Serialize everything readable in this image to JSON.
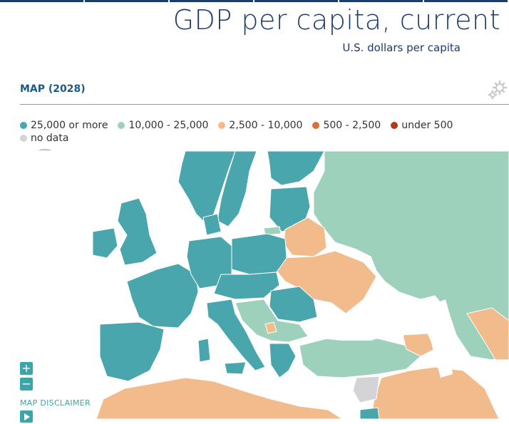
{
  "title": "GDP per capita, current",
  "subtitle": "U.S. dollars per capita",
  "map_header": "MAP (2028)",
  "legend": [
    {
      "label": "25,000 or more",
      "color": "#4aa6ad"
    },
    {
      "label": "10,000 - 25,000",
      "color": "#9dd1bb"
    },
    {
      "label": "2,500 - 10,000",
      "color": "#f2bb8c"
    },
    {
      "label": "500 - 2,500",
      "color": "#d9703b"
    },
    {
      "label": "under 500",
      "color": "#b03a1e"
    },
    {
      "label": "no data",
      "color": "#d4d4d8"
    }
  ],
  "controls": {
    "zoom_in": "+",
    "zoom_out": "−",
    "disclaimer": "MAP DISCLAIMER"
  },
  "icons": {
    "settings": "gear-icon",
    "play": "play-icon",
    "loading": "loading-icon"
  },
  "colors": {
    "accent": "#3aa6a8",
    "title": "#1d3b6b",
    "header": "#1d5a8a"
  }
}
